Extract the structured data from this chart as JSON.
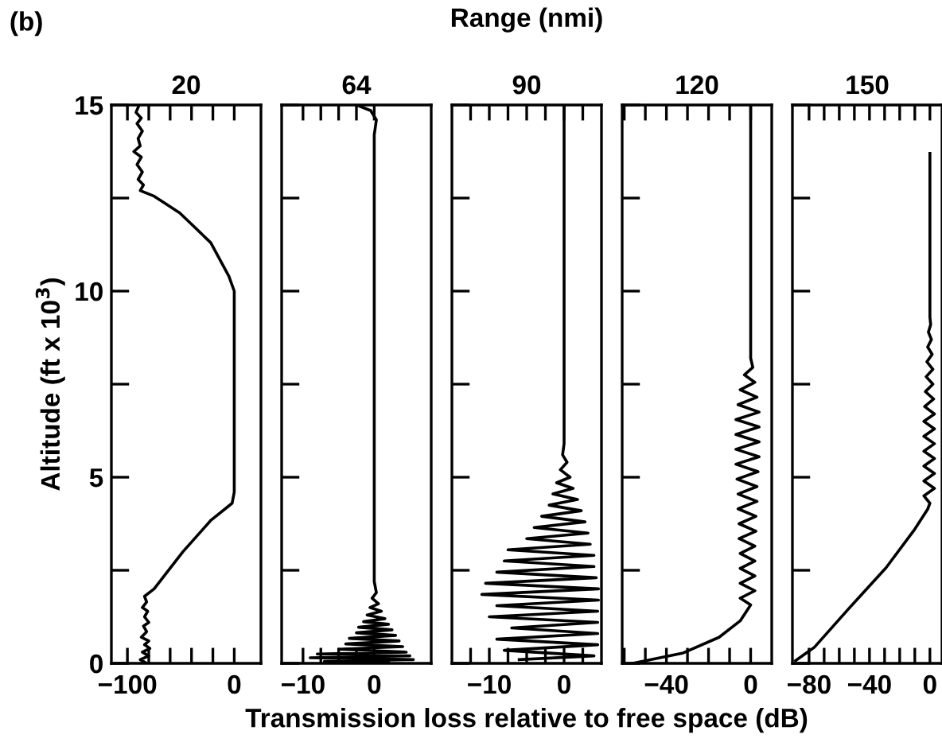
{
  "chart_data": [
    {
      "type": "line",
      "title": "20",
      "ylabel": "Altitude (ft x 10$^{3}$)",
      "annotations": [
        "(b)"
      ],
      "xlim": [
        -115,
        25
      ],
      "xticks": [
        -100,
        {
          "value": -80,
          "label": null
        },
        {
          "value": -60,
          "label": null
        },
        {
          "value": -40,
          "label": null
        },
        {
          "value": -20,
          "label": null
        },
        0
      ],
      "ylim": [
        0,
        15
      ],
      "yticks": [
        0,
        {
          "value": 2.5,
          "label": null
        },
        5,
        {
          "value": 7.5,
          "label": null
        },
        10,
        {
          "value": 12.5,
          "label": null
        },
        15
      ],
      "series": [
        {
          "color": "#000000",
          "x": [
            -82,
            -88,
            -80,
            -86,
            -79,
            -84,
            -80,
            -87,
            -82,
            -85,
            -80,
            -84,
            -81,
            -86,
            -82,
            -84,
            -75,
            -48,
            -21.6,
            -2,
            0,
            0,
            -5,
            -22,
            -51,
            -75,
            -88,
            -85,
            -90,
            -86,
            -91,
            -87,
            -94,
            -88,
            -90,
            -86,
            -91,
            -87,
            -92,
            -89
          ],
          "values": [
            0,
            0.1,
            0.2,
            0.3,
            0.4,
            0.5,
            0.6,
            0.7,
            0.85,
            1.0,
            1.1,
            1.25,
            1.4,
            1.5,
            1.65,
            1.8,
            2.0,
            3.0,
            3.85,
            4.3,
            4.6,
            10.0,
            10.4,
            11.3,
            12.1,
            12.55,
            12.7,
            12.85,
            13.0,
            13.2,
            13.4,
            13.6,
            13.75,
            13.9,
            14.1,
            14.3,
            14.5,
            14.65,
            14.8,
            15
          ]
        }
      ]
    },
    {
      "type": "line",
      "title": "64",
      "tick_labels": "x",
      "xlim": [
        -13,
        8
      ],
      "xticks": [
        -10,
        {
          "value": -7.5,
          "label": null
        },
        {
          "value": -5,
          "label": null
        },
        {
          "value": -2.5,
          "label": null
        },
        0
      ],
      "ylim": [
        0,
        15
      ],
      "yticks": [
        0,
        2.5,
        5,
        7.5,
        10,
        12.5,
        15
      ],
      "series": [
        {
          "color": "#000000",
          "x": [
            2,
            -7,
            5.5,
            -9,
            5,
            -8,
            4.5,
            -5,
            4,
            -4,
            3.5,
            -3.5,
            3,
            -2.5,
            2.5,
            -2.2,
            2,
            -1.5,
            1.5,
            -1,
            1,
            -0.6,
            0.6,
            -0.3,
            0.3,
            0,
            0,
            0.3,
            -0.5,
            -2.5
          ],
          "values": [
            0.02,
            0.05,
            0.1,
            0.15,
            0.2,
            0.25,
            0.3,
            0.38,
            0.45,
            0.52,
            0.6,
            0.67,
            0.75,
            0.82,
            0.9,
            0.97,
            1.05,
            1.12,
            1.2,
            1.3,
            1.4,
            1.5,
            1.6,
            1.75,
            1.9,
            2.2,
            14.2,
            14.6,
            14.85,
            15
          ]
        }
      ]
    },
    {
      "type": "line",
      "title": "90",
      "xlabel": "Transmission loss relative to free space (dB)",
      "annotations": [
        "Range (nmi)"
      ],
      "tick_labels": "x",
      "xlim": [
        -15,
        5
      ],
      "xticks": [
        {
          "value": -12.5,
          "label": null
        },
        -10,
        {
          "value": -7.5,
          "label": null
        },
        {
          "value": -5,
          "label": null
        },
        {
          "value": -2.5,
          "label": null
        },
        0,
        {
          "value": 2.5,
          "label": null
        }
      ],
      "ylim": [
        0,
        15
      ],
      "yticks": [
        0,
        2.5,
        5,
        7.5,
        10,
        12.5,
        15
      ],
      "series": [
        {
          "color": "#000000",
          "x": [
            -6,
            4,
            -8,
            4.5,
            -9,
            4.5,
            -7,
            4.5,
            -10,
            4.5,
            -9,
            4.6,
            -11,
            4.6,
            -10.5,
            4.3,
            -9,
            4,
            -8,
            4,
            -7.5,
            3.5,
            -5,
            3.2,
            -4,
            2.8,
            -3,
            2.3,
            -2,
            1.8,
            -1.5,
            1.2,
            -1,
            0.8,
            -0.5,
            0.4,
            -0.2,
            0,
            0
          ],
          "values": [
            0.1,
            0.2,
            0.35,
            0.5,
            0.65,
            0.8,
            0.95,
            1.1,
            1.25,
            1.4,
            1.55,
            1.7,
            1.85,
            2.0,
            2.15,
            2.3,
            2.45,
            2.6,
            2.75,
            2.9,
            3.05,
            3.2,
            3.35,
            3.5,
            3.65,
            3.8,
            3.95,
            4.1,
            4.25,
            4.4,
            4.55,
            4.7,
            4.85,
            5.0,
            5.2,
            5.4,
            5.6,
            5.9,
            15
          ]
        }
      ]
    },
    {
      "type": "line",
      "title": "120",
      "tick_labels": "x",
      "xlim": [
        -61,
        10
      ],
      "xticks": [
        {
          "value": -60,
          "label": null
        },
        {
          "value": -50,
          "label": null
        },
        -40,
        {
          "value": -30,
          "label": null
        },
        {
          "value": -20,
          "label": null
        },
        {
          "value": -10,
          "label": null
        },
        0
      ],
      "ylim": [
        0,
        15
      ],
      "yticks": [
        0,
        2.5,
        5,
        7.5,
        10,
        12.5,
        15
      ],
      "series": [
        {
          "color": "#000000",
          "x": [
            -56,
            -32,
            -15,
            -5,
            0,
            -5,
            2,
            -5,
            2,
            -5,
            2,
            -5,
            2,
            -5.5,
            2.5,
            -5.5,
            2.5,
            -6,
            3,
            -6,
            3,
            -6.5,
            3.5,
            -7,
            4,
            -7,
            4,
            -7,
            4,
            -7,
            4,
            -6,
            3,
            -5,
            2,
            -3,
            1,
            0,
            0
          ],
          "values": [
            0,
            0.28,
            0.7,
            1.14,
            1.57,
            1.75,
            1.95,
            2.15,
            2.35,
            2.55,
            2.75,
            2.95,
            3.15,
            3.35,
            3.55,
            3.75,
            3.95,
            4.15,
            4.35,
            4.55,
            4.75,
            4.95,
            5.15,
            5.35,
            5.55,
            5.75,
            5.95,
            6.15,
            6.35,
            6.55,
            6.75,
            6.95,
            7.15,
            7.35,
            7.55,
            7.75,
            7.95,
            8.2,
            15
          ]
        }
      ]
    },
    {
      "type": "line",
      "title": "150",
      "tick_labels": "x",
      "xlim": [
        -91,
        8
      ],
      "xticks": [
        -80,
        {
          "value": -70,
          "label": null
        },
        {
          "value": -60,
          "label": null
        },
        {
          "value": -50,
          "label": null
        },
        -40,
        {
          "value": -30,
          "label": null
        },
        {
          "value": -20,
          "label": null
        },
        {
          "value": -10,
          "label": null
        },
        0
      ],
      "ylim": [
        0,
        15
      ],
      "yticks": [
        0,
        2.5,
        5,
        7.5,
        10,
        12.5,
        15
      ],
      "series": [
        {
          "color": "#000000",
          "x": [
            -89,
            -76.5,
            -54.6,
            -29,
            -10.6,
            -1.5,
            0,
            -4,
            3,
            -4,
            3,
            -4,
            3,
            -4,
            3,
            -4,
            3,
            -4,
            3,
            -3.5,
            2.5,
            -3,
            2,
            -2.5,
            2,
            -2,
            1.5,
            -1.5,
            1,
            -1,
            0.5,
            0,
            0
          ],
          "values": [
            0.07,
            0.43,
            1.43,
            2.57,
            3.57,
            4.14,
            4.3,
            4.5,
            4.7,
            4.9,
            5.1,
            5.3,
            5.5,
            5.7,
            5.9,
            6.1,
            6.3,
            6.5,
            6.7,
            6.9,
            7.1,
            7.3,
            7.5,
            7.7,
            7.9,
            8.1,
            8.3,
            8.5,
            8.7,
            8.9,
            9.1,
            9.3,
            13.7
          ]
        }
      ]
    }
  ]
}
